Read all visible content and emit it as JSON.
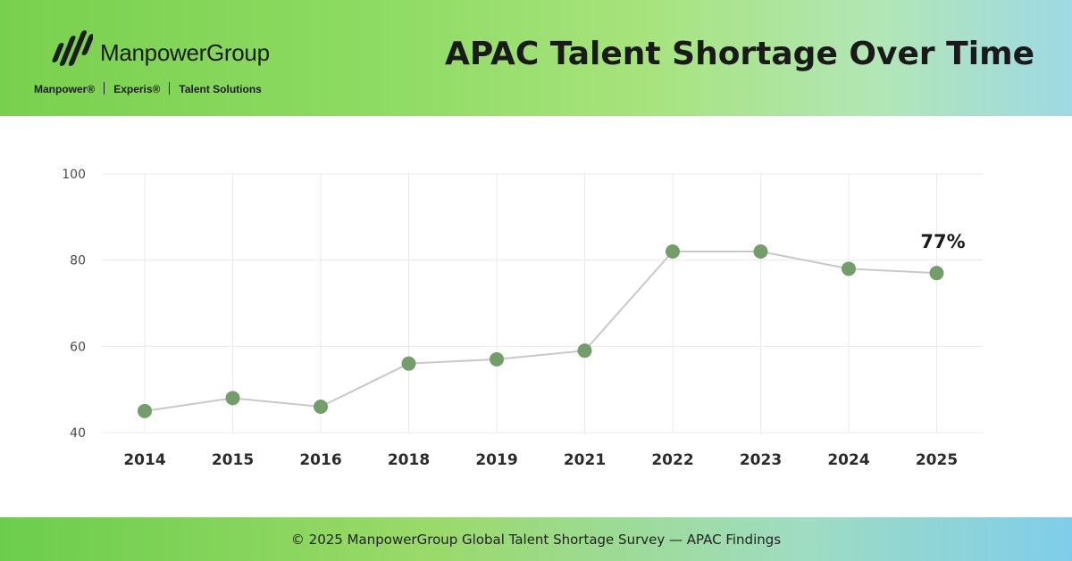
{
  "header": {
    "logo_name": "ManpowerGroup",
    "logo_icon": "manpowergroup-logo-icon",
    "brands": [
      "Manpower®",
      "Experis®",
      "Talent Solutions"
    ],
    "title": "APAC Talent Shortage Over Time"
  },
  "footer": {
    "text": "© 2025 ManpowerGroup Global Talent Shortage Survey — APAC Findings"
  },
  "colors": {
    "marker": "#739e6a",
    "line": "#c8c8c8",
    "grid": "#ebe8ef",
    "tick_text": "#4a4a4a",
    "category_text": "#2b2b2b"
  },
  "chart_data": {
    "type": "line",
    "categories": [
      "2014",
      "2015",
      "2016",
      "2018",
      "2019",
      "2021",
      "2022",
      "2023",
      "2024",
      "2025"
    ],
    "values": [
      45,
      48,
      46,
      56,
      57,
      59,
      82,
      82,
      78,
      77
    ],
    "ylim": [
      40,
      100
    ],
    "yticks": [
      100,
      80,
      60,
      40
    ],
    "title": "APAC Talent Shortage Over Time",
    "xlabel": "",
    "ylabel": "",
    "grid": true,
    "annotations": [
      {
        "category": "2025",
        "text": "77%"
      }
    ]
  }
}
